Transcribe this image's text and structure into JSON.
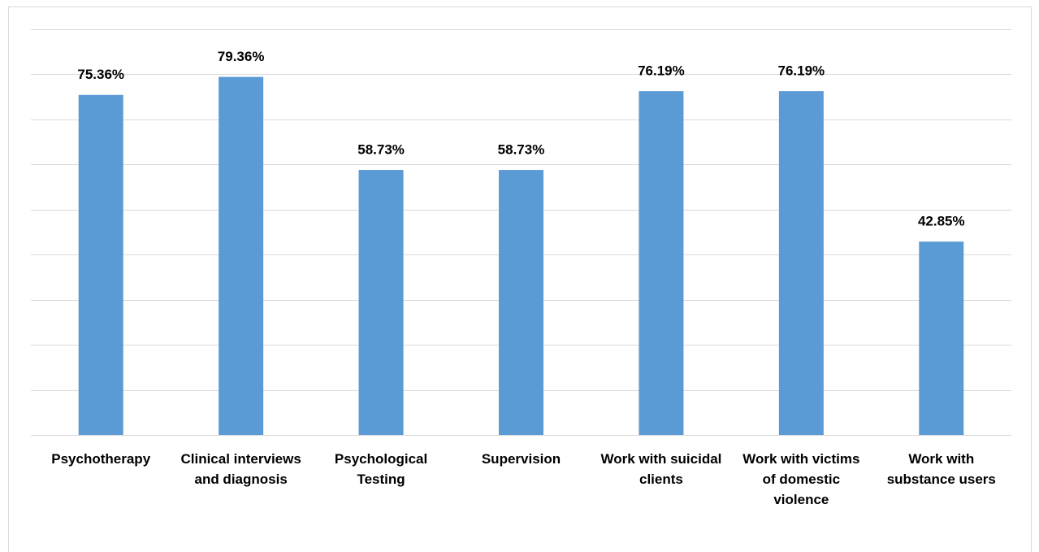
{
  "chart_data": {
    "type": "bar",
    "categories": [
      "Psychotherapy",
      "Clinical interviews and diagnosis",
      "Psychological Testing",
      "Supervision",
      "Work with suicidal clients",
      "Work with victims of domestic violence",
      "Work with substance users"
    ],
    "values": [
      75.36,
      79.36,
      58.73,
      58.73,
      76.19,
      76.19,
      42.85
    ],
    "value_labels": [
      "75.36%",
      "79.36%",
      "58.73%",
      "58.73%",
      "76.19%",
      "76.19%",
      "42.85%"
    ],
    "color": "#5b9bd5",
    "ylim": [
      0,
      90
    ],
    "yticks": [
      0,
      10,
      20,
      30,
      40,
      50,
      60,
      70,
      80,
      90
    ],
    "grid": true
  }
}
